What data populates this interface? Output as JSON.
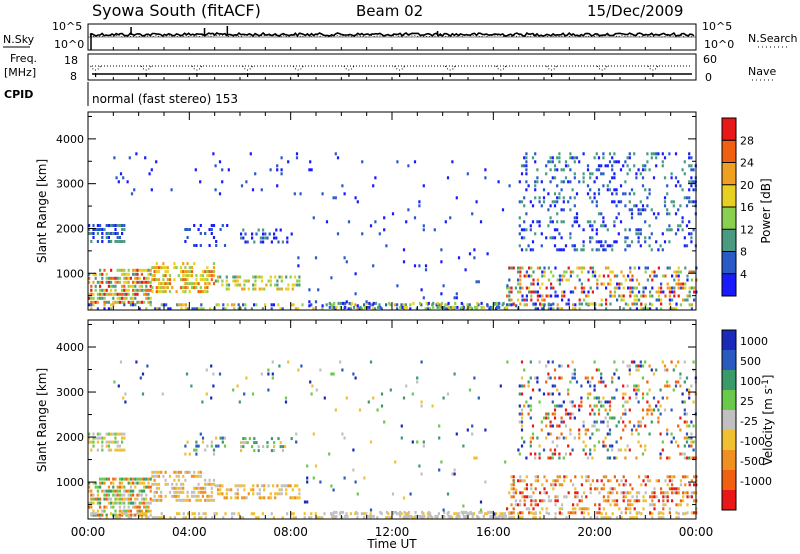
{
  "header": {
    "station": "Syowa South (fitACF)",
    "beam": "Beam 02",
    "date": "15/Dec/2009"
  },
  "side_labels": {
    "nsky": "N.Sky",
    "freq_line1": "Freq.",
    "freq_line2": "[MHz]",
    "cpid": "CPID",
    "nsearch": "N.Search",
    "nave": "Nave"
  },
  "cpid_text": "normal (fast stereo) 153",
  "chart_data": [
    {
      "type": "line",
      "panel": "noise",
      "series": [
        {
          "name": "N.Sky"
        },
        {
          "name": "N.Search"
        }
      ],
      "y_ticks": [
        "10^5",
        "10^0"
      ],
      "y_ticks_right": [
        "10^5",
        "10^0"
      ]
    },
    {
      "type": "line",
      "panel": "freq-nave",
      "series": [
        {
          "name": "Freq."
        },
        {
          "name": "Nave"
        }
      ],
      "y_ticks": [
        "18",
        "8"
      ],
      "y_ticks_right": [
        "60",
        "0"
      ]
    },
    {
      "type": "heatmap",
      "panel": "power",
      "ylabel": "Slant Range [km]",
      "y_ticks": [
        "1000",
        "2000",
        "3000",
        "4000"
      ],
      "x_ticks": [
        "00:00",
        "04:00",
        "08:00",
        "12:00",
        "16:00",
        "20:00",
        "00:00"
      ],
      "xlim": [
        0,
        24
      ],
      "ylim": [
        180,
        4600
      ],
      "colorbar": {
        "label": "Power [dB]",
        "ticks": [
          "4",
          "8",
          "12",
          "16",
          "20",
          "24",
          "28"
        ],
        "colors": [
          "#1a1aff",
          "#2a5ac8",
          "#4a9a82",
          "#8ad050",
          "#e8d020",
          "#f0a020",
          "#f06010",
          "#e81818"
        ]
      }
    },
    {
      "type": "heatmap",
      "panel": "velocity",
      "ylabel": "Slant Range [km]",
      "xlabel": "Time UT",
      "y_ticks": [
        "1000",
        "2000",
        "3000",
        "4000"
      ],
      "x_ticks": [
        "00:00",
        "04:00",
        "08:00",
        "12:00",
        "16:00",
        "20:00",
        "00:00"
      ],
      "xlim": [
        0,
        24
      ],
      "ylim": [
        180,
        4600
      ],
      "colorbar": {
        "label": "Velocity [m s^-1]",
        "ticks": [
          "1000",
          "500",
          "100",
          "25",
          "-25",
          "-100",
          "-500",
          "-1000"
        ],
        "colors": [
          "#1a2ab8",
          "#2a5ac0",
          "#3a9a6a",
          "#6ac84a",
          "#c0c0c0",
          "#f0c030",
          "#f09020",
          "#f06010",
          "#e81818"
        ]
      }
    }
  ]
}
